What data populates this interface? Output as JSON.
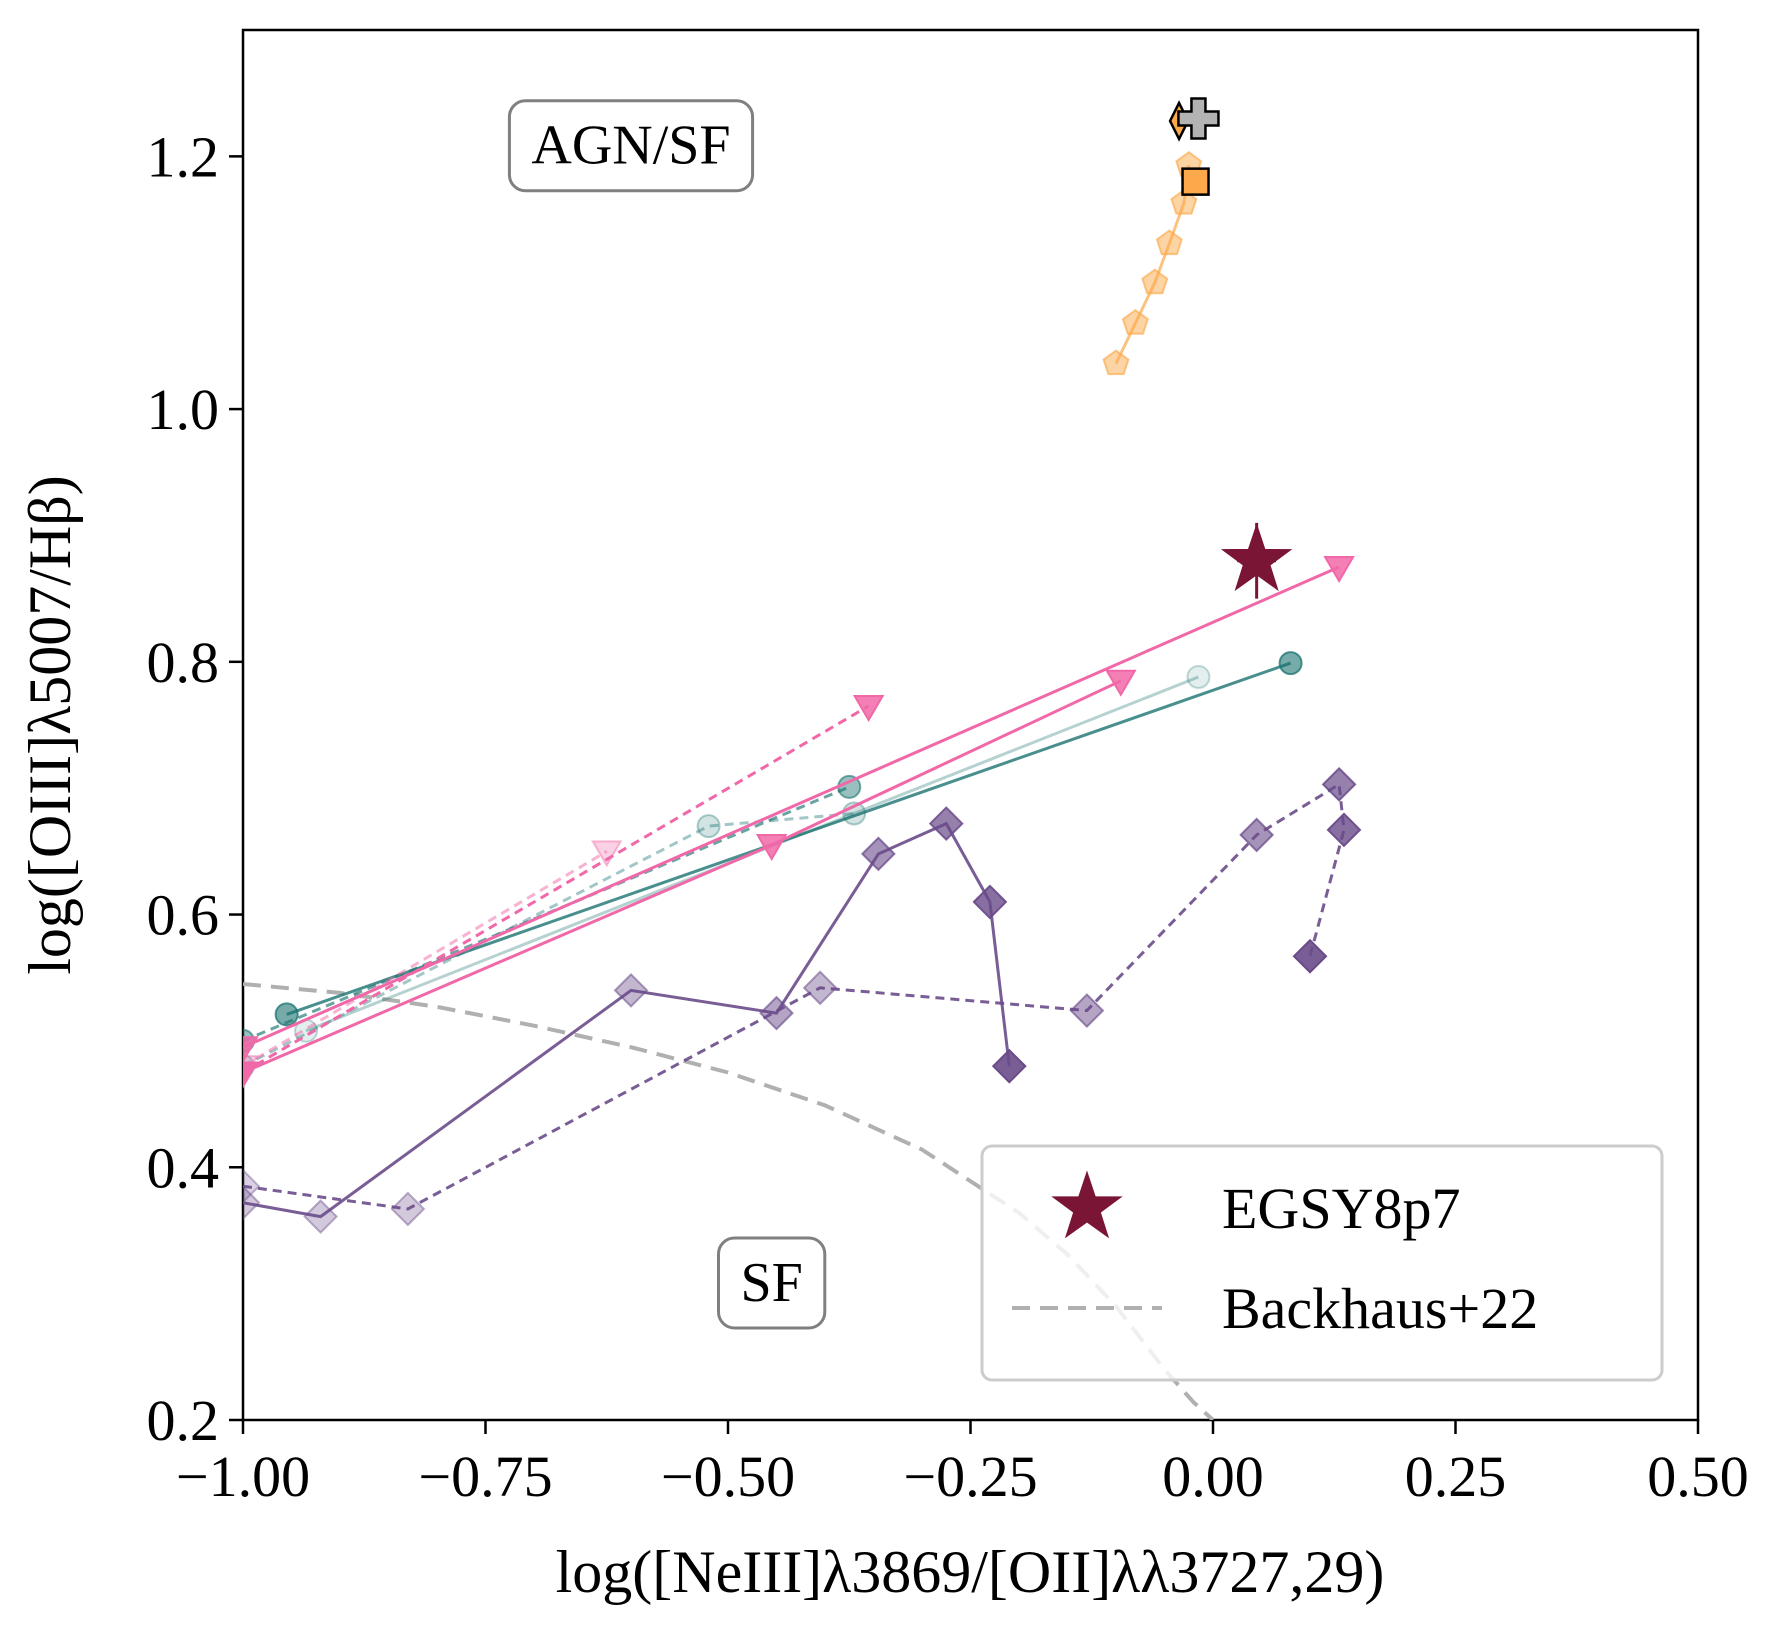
{
  "chart_data": {
    "type": "scatter",
    "xlabel": "log([NeIII]λ3869/[OII]λλ3727,29)",
    "ylabel": "log([OIII]λ5007/Hβ)",
    "xlim": [
      -1.0,
      0.5
    ],
    "ylim": [
      0.2,
      1.3
    ],
    "x_ticks": [
      -1.0,
      -0.75,
      -0.5,
      -0.25,
      0.0,
      0.25,
      0.5
    ],
    "x_tick_labels": [
      "−1.00",
      "−0.75",
      "−0.50",
      "−0.25",
      "0.00",
      "0.25",
      "0.50"
    ],
    "y_ticks": [
      0.2,
      0.4,
      0.6,
      0.8,
      1.0,
      1.2
    ],
    "y_tick_labels": [
      "0.2",
      "0.4",
      "0.6",
      "0.8",
      "1.0",
      "1.2"
    ],
    "grid": false,
    "legend_position": "bottom-right",
    "annotations": [
      {
        "text": "AGN/SF",
        "x": -0.6,
        "y": 1.21
      },
      {
        "text": "SF",
        "x": -0.455,
        "y": 0.31
      }
    ],
    "legend": [
      {
        "label": "EGSY8p7",
        "marker": "star",
        "color": "#7a1535"
      },
      {
        "label": "Backhaus+22",
        "marker": "dashed-line",
        "color": "#b0b0b0"
      }
    ],
    "colors": {
      "egsy": "#7a1535",
      "backhaus": "#b0b0b0",
      "teal": "#1a7370",
      "pink": "#f168a8",
      "purple": "#6a4b8a",
      "orange": "#fba94a",
      "grey_marker": "#b3b3b3"
    },
    "series": [
      {
        "name": "EGSY8p7",
        "marker": "star",
        "color": "#7a1535",
        "x": [
          0.045
        ],
        "y": [
          0.88
        ],
        "x_err": [
          0.02
        ],
        "y_err": [
          0.03
        ]
      },
      {
        "name": "Backhaus+22",
        "kind": "curve",
        "style": "dashed",
        "color": "#b0b0b0",
        "x": [
          -1.0,
          -0.9,
          -0.8,
          -0.7,
          -0.6,
          -0.5,
          -0.4,
          -0.3,
          -0.2,
          -0.15,
          -0.1,
          -0.05,
          -0.02,
          0.0
        ],
        "y": [
          0.545,
          0.538,
          0.527,
          0.512,
          0.495,
          0.475,
          0.449,
          0.414,
          0.364,
          0.331,
          0.29,
          0.24,
          0.214,
          0.2
        ]
      },
      {
        "name": "teal-solid",
        "marker": "circle",
        "color": "#1a7370",
        "style": "solid",
        "alpha": 0.6,
        "x": [
          -0.955,
          0.08
        ],
        "y": [
          0.521,
          0.799
        ]
      },
      {
        "name": "teal-solid-faint",
        "marker": "circle",
        "color": "#1a7370",
        "style": "solid",
        "alpha": 0.12,
        "x": [
          -0.935,
          -0.015
        ],
        "y": [
          0.508,
          0.788
        ]
      },
      {
        "name": "teal-dashed",
        "marker": "circle",
        "color": "#1a7370",
        "style": "dashed",
        "alpha": 0.45,
        "x": [
          -1.0,
          -0.375
        ],
        "y": [
          0.5,
          0.701
        ]
      },
      {
        "name": "teal-dashed-faint",
        "marker": "circle",
        "color": "#1a7370",
        "style": "dashed",
        "alpha": 0.2,
        "x": [
          -1.0,
          -0.52,
          -0.37
        ],
        "y": [
          0.48,
          0.67,
          0.68
        ]
      },
      {
        "name": "pink-solid",
        "marker": "triangle-down",
        "color": "#f168a8",
        "style": "solid",
        "alpha": 0.85,
        "x": [
          -1.0,
          0.13
        ],
        "y": [
          0.495,
          0.875
        ]
      },
      {
        "name": "pink-solid-2",
        "marker": "triangle-down",
        "color": "#f168a8",
        "style": "solid",
        "alpha": 0.85,
        "x": [
          -1.0,
          -0.455,
          -0.095
        ],
        "y": [
          0.475,
          0.655,
          0.785
        ]
      },
      {
        "name": "pink-dashed",
        "marker": "triangle-down",
        "color": "#f168a8",
        "style": "dashed",
        "alpha": 0.85,
        "x": [
          -1.0,
          -0.355
        ],
        "y": [
          0.475,
          0.765
        ]
      },
      {
        "name": "pink-dashed-faint",
        "marker": "triangle-down",
        "color": "#f168a8",
        "style": "dashed",
        "alpha": 0.3,
        "x": [
          -1.0,
          -0.625
        ],
        "y": [
          0.48,
          0.65
        ]
      },
      {
        "name": "purple-solid",
        "marker": "diamond",
        "color": "#6a4b8a",
        "style": "solid",
        "x": [
          -1.0,
          -0.92,
          -0.6,
          -0.45,
          -0.345,
          -0.275,
          -0.23,
          -0.21
        ],
        "y": [
          0.372,
          0.361,
          0.54,
          0.522,
          0.648,
          0.672,
          0.61,
          0.48
        ],
        "alpha": [
          0.3,
          0.3,
          0.4,
          0.5,
          0.6,
          0.7,
          0.8,
          0.9
        ]
      },
      {
        "name": "purple-dashed",
        "marker": "diamond",
        "color": "#6a4b8a",
        "style": "dashed",
        "x": [
          -1.0,
          -0.83,
          -0.405,
          -0.13,
          0.045,
          0.13,
          0.135,
          0.1
        ],
        "y": [
          0.385,
          0.367,
          0.542,
          0.524,
          0.663,
          0.703,
          0.667,
          0.567
        ],
        "alpha": [
          0.25,
          0.3,
          0.4,
          0.5,
          0.6,
          0.7,
          0.8,
          0.9
        ]
      },
      {
        "name": "orange-pentagon-track",
        "marker": "pentagon",
        "color": "#fba94a",
        "style": "solid",
        "alpha": 0.5,
        "x": [
          -0.1,
          -0.08,
          -0.06,
          -0.045,
          -0.03,
          -0.025
        ],
        "y": [
          1.036,
          1.068,
          1.1,
          1.131,
          1.163,
          1.193
        ]
      },
      {
        "name": "orange-square",
        "marker": "square",
        "color": "#fba94a",
        "x": [
          -0.018
        ],
        "y": [
          1.18
        ]
      },
      {
        "name": "orange-diamond",
        "marker": "thin-diamond",
        "color": "#fba94a",
        "x": [
          -0.035
        ],
        "y": [
          1.228
        ]
      },
      {
        "name": "grey-plus",
        "marker": "plus",
        "color": "#b3b3b3",
        "x": [
          -0.015
        ],
        "y": [
          1.23
        ]
      }
    ]
  }
}
